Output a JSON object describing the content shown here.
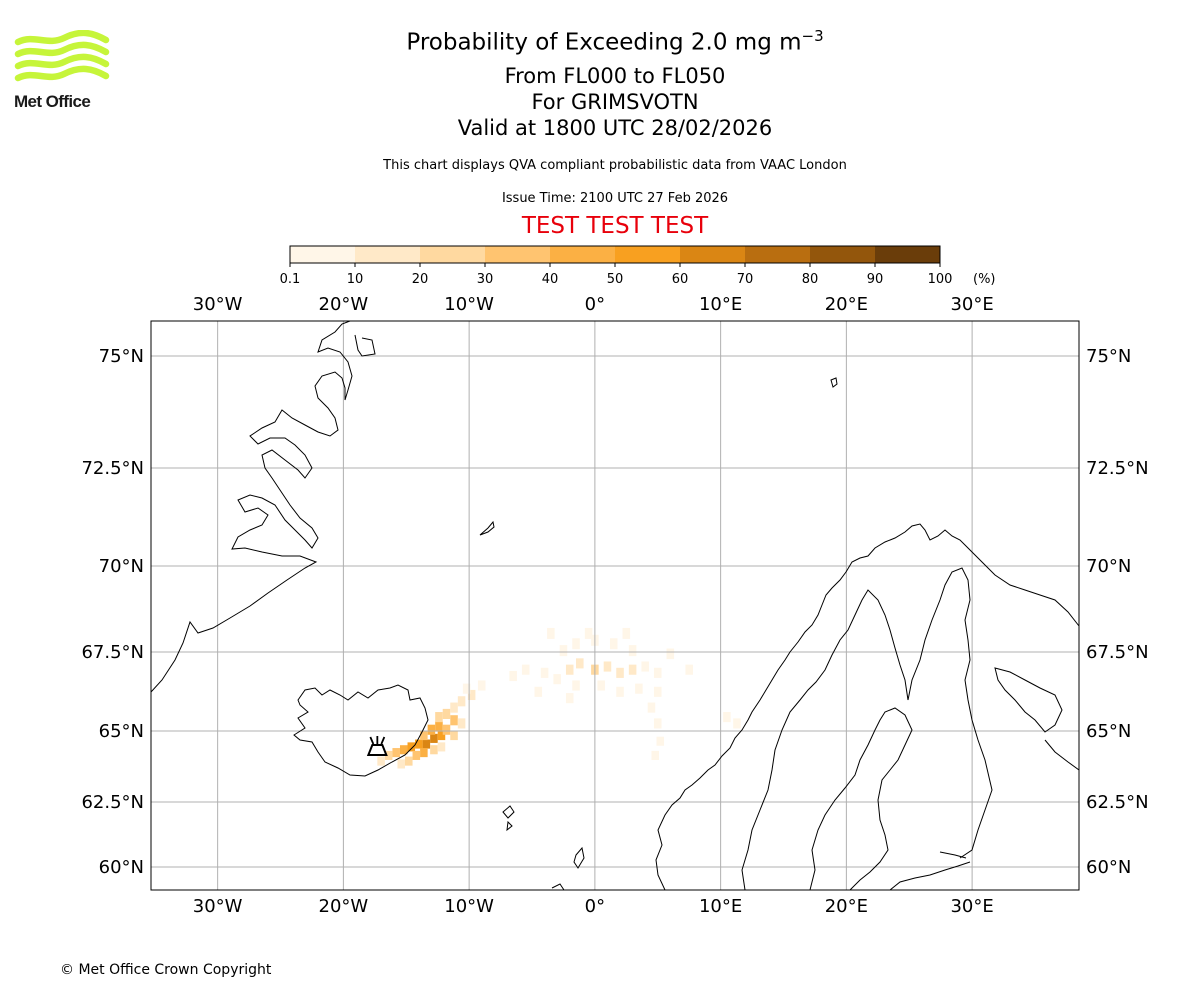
{
  "header": {
    "title_main": "Probability of Exceeding 2.0 mg m",
    "title_superscript": "−3",
    "level_range": "From FL000 to FL050",
    "volcano": "For GRIMSVOTN",
    "valid_time": "Valid at 1800 UTC 28/02/2026",
    "description": "This chart displays QVA compliant probabilistic data from VAAC London",
    "issue_time": "Issue Time: 2100 UTC 27 Feb 2026",
    "test_banner": "TEST TEST TEST"
  },
  "logo": {
    "text": "Met Office",
    "color": "#c6f53a"
  },
  "colorbar": {
    "ticks": [
      "0.1",
      "10",
      "20",
      "30",
      "40",
      "50",
      "60",
      "70",
      "80",
      "90",
      "100"
    ],
    "unit": "(%)",
    "colors": [
      "#fff6e8",
      "#ffe9c8",
      "#ffd9a0",
      "#ffc470",
      "#fbb044",
      "#f8a020",
      "#da8614",
      "#b96e10",
      "#93560c",
      "#6a3d0a"
    ]
  },
  "map": {
    "lon_labels": [
      "30°W",
      "20°W",
      "10°W",
      "0°",
      "10°E",
      "20°E",
      "30°E"
    ],
    "lat_labels": [
      "75°N",
      "72.5°N",
      "70°N",
      "67.5°N",
      "65°N",
      "62.5°N",
      "60°N"
    ],
    "lon_range": [
      -35.3,
      38.5
    ],
    "lat_range": [
      59.5,
      76.0
    ],
    "volcano_symbol": "volcano-icon",
    "plume_cells": [
      [
        -12.8,
        64.8,
        60
      ],
      [
        -13.4,
        64.6,
        60
      ],
      [
        -12.2,
        64.9,
        50
      ],
      [
        -14.0,
        64.6,
        50
      ],
      [
        -14.6,
        64.5,
        50
      ],
      [
        -13.0,
        65.1,
        40
      ],
      [
        -12.4,
        65.2,
        40
      ],
      [
        -11.8,
        65.1,
        30
      ],
      [
        -15.2,
        64.4,
        40
      ],
      [
        -15.8,
        64.3,
        30
      ],
      [
        -13.6,
        64.3,
        40
      ],
      [
        -14.2,
        64.2,
        30
      ],
      [
        -11.2,
        65.4,
        30
      ],
      [
        -11.8,
        65.6,
        20
      ],
      [
        -12.4,
        65.5,
        20
      ],
      [
        -13.6,
        64.9,
        30
      ],
      [
        -12.8,
        64.4,
        20
      ],
      [
        -11.2,
        64.9,
        20
      ],
      [
        -10.6,
        65.3,
        10
      ],
      [
        -11.2,
        65.8,
        10
      ],
      [
        -10.6,
        66.0,
        10
      ],
      [
        -9.8,
        66.2,
        10
      ],
      [
        -9.0,
        66.5,
        0.1
      ],
      [
        -10.2,
        66.4,
        0.1
      ],
      [
        -16.4,
        64.2,
        20
      ],
      [
        -17.0,
        64.0,
        10
      ],
      [
        -14.8,
        64.0,
        20
      ],
      [
        -15.4,
        63.9,
        10
      ],
      [
        -12.2,
        64.5,
        10
      ],
      [
        -2.0,
        67.0,
        10
      ],
      [
        -1.2,
        67.2,
        10
      ],
      [
        0.0,
        67.0,
        20
      ],
      [
        1.0,
        67.1,
        10
      ],
      [
        2.0,
        66.9,
        10
      ],
      [
        3.0,
        67.0,
        10
      ],
      [
        4.0,
        67.1,
        0.1
      ],
      [
        5.0,
        66.9,
        0.1
      ],
      [
        -3.0,
        66.7,
        0.1
      ],
      [
        -4.0,
        66.9,
        0.1
      ],
      [
        -5.5,
        67.0,
        0.1
      ],
      [
        -6.5,
        66.8,
        0.1
      ],
      [
        -2.5,
        67.6,
        0.1
      ],
      [
        -1.5,
        67.8,
        0.1
      ],
      [
        0.0,
        67.9,
        0.1
      ],
      [
        1.5,
        67.8,
        0.1
      ],
      [
        3.0,
        67.6,
        0.1
      ],
      [
        -1.5,
        66.5,
        0.1
      ],
      [
        0.5,
        66.5,
        0.1
      ],
      [
        2.0,
        66.3,
        0.1
      ],
      [
        3.5,
        66.4,
        0.1
      ],
      [
        5.0,
        66.3,
        0.1
      ],
      [
        4.5,
        65.8,
        0.1
      ],
      [
        5.0,
        65.3,
        0.1
      ],
      [
        5.2,
        64.7,
        0.1
      ],
      [
        4.8,
        64.2,
        0.1
      ],
      [
        -2.0,
        66.1,
        0.1
      ],
      [
        -4.5,
        66.3,
        0.1
      ],
      [
        7.5,
        67.0,
        0.1
      ],
      [
        10.5,
        65.5,
        0.1
      ],
      [
        11.3,
        65.3,
        0.1
      ],
      [
        -0.5,
        68.1,
        0.1
      ],
      [
        -3.5,
        68.1,
        0.1
      ],
      [
        6.0,
        67.5,
        0.1
      ],
      [
        2.5,
        68.1,
        0.1
      ]
    ]
  },
  "footer": {
    "copyright": "© Met Office Crown Copyright"
  }
}
